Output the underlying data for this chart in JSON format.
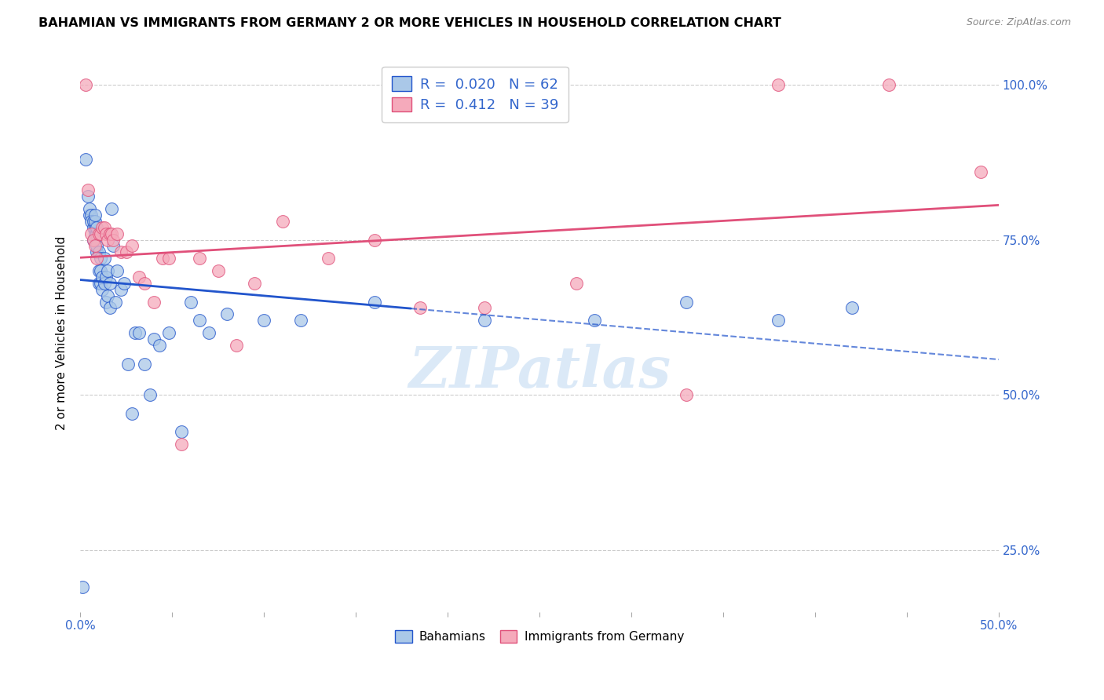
{
  "title": "BAHAMIAN VS IMMIGRANTS FROM GERMANY 2 OR MORE VEHICLES IN HOUSEHOLD CORRELATION CHART",
  "source": "Source: ZipAtlas.com",
  "ylabel": "2 or more Vehicles in Household",
  "xlim": [
    0.0,
    0.5
  ],
  "ylim": [
    0.15,
    1.05
  ],
  "legend_R_blue": "0.020",
  "legend_N_blue": "62",
  "legend_R_pink": "0.412",
  "legend_N_pink": "39",
  "blue_color": "#aac8e8",
  "blue_line_color": "#2255cc",
  "pink_color": "#f5aabb",
  "pink_line_color": "#e0507a",
  "legend_text_color": "#3366cc",
  "watermark_text": "ZIPatlas",
  "ytick_vals": [
    0.25,
    0.5,
    0.75,
    1.0
  ],
  "ytick_labels": [
    "25.0%",
    "50.0%",
    "75.0%",
    "100.0%"
  ],
  "blue_scatter_x": [
    0.001,
    0.003,
    0.004,
    0.005,
    0.005,
    0.006,
    0.006,
    0.007,
    0.007,
    0.007,
    0.008,
    0.008,
    0.008,
    0.008,
    0.009,
    0.009,
    0.009,
    0.009,
    0.01,
    0.01,
    0.01,
    0.011,
    0.011,
    0.011,
    0.012,
    0.012,
    0.013,
    0.013,
    0.014,
    0.014,
    0.015,
    0.015,
    0.016,
    0.016,
    0.017,
    0.018,
    0.019,
    0.02,
    0.022,
    0.024,
    0.026,
    0.028,
    0.03,
    0.032,
    0.035,
    0.038,
    0.04,
    0.043,
    0.048,
    0.055,
    0.06,
    0.065,
    0.07,
    0.08,
    0.1,
    0.12,
    0.16,
    0.22,
    0.28,
    0.33,
    0.38,
    0.42
  ],
  "blue_scatter_y": [
    0.19,
    0.88,
    0.82,
    0.79,
    0.8,
    0.79,
    0.78,
    0.75,
    0.77,
    0.78,
    0.76,
    0.77,
    0.78,
    0.79,
    0.73,
    0.74,
    0.76,
    0.77,
    0.68,
    0.7,
    0.73,
    0.68,
    0.7,
    0.72,
    0.67,
    0.69,
    0.68,
    0.72,
    0.65,
    0.69,
    0.66,
    0.7,
    0.64,
    0.68,
    0.8,
    0.74,
    0.65,
    0.7,
    0.67,
    0.68,
    0.55,
    0.47,
    0.6,
    0.6,
    0.55,
    0.5,
    0.59,
    0.58,
    0.6,
    0.44,
    0.65,
    0.62,
    0.6,
    0.63,
    0.62,
    0.62,
    0.65,
    0.62,
    0.62,
    0.65,
    0.62,
    0.64
  ],
  "pink_scatter_x": [
    0.003,
    0.004,
    0.006,
    0.007,
    0.008,
    0.009,
    0.01,
    0.011,
    0.012,
    0.013,
    0.014,
    0.015,
    0.016,
    0.017,
    0.018,
    0.02,
    0.022,
    0.025,
    0.028,
    0.032,
    0.035,
    0.04,
    0.045,
    0.048,
    0.055,
    0.065,
    0.075,
    0.085,
    0.095,
    0.11,
    0.135,
    0.16,
    0.185,
    0.22,
    0.27,
    0.33,
    0.38,
    0.44,
    0.49
  ],
  "pink_scatter_y": [
    1.0,
    0.83,
    0.76,
    0.75,
    0.74,
    0.72,
    0.76,
    0.76,
    0.77,
    0.77,
    0.76,
    0.75,
    0.76,
    0.76,
    0.75,
    0.76,
    0.73,
    0.73,
    0.74,
    0.69,
    0.68,
    0.65,
    0.72,
    0.72,
    0.42,
    0.72,
    0.7,
    0.58,
    0.68,
    0.78,
    0.72,
    0.75,
    0.64,
    0.64,
    0.68,
    0.5,
    1.0,
    1.0,
    0.86
  ],
  "blue_solid_xend": 0.18,
  "xtick_positions": [
    0.0,
    0.05,
    0.1,
    0.15,
    0.2,
    0.25,
    0.3,
    0.35,
    0.4,
    0.45,
    0.5
  ]
}
